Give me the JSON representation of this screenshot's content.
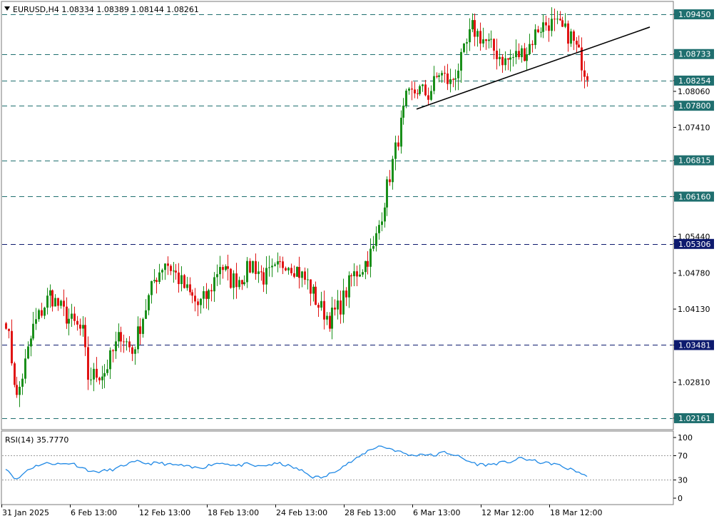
{
  "header": {
    "symbol_line": "EURUSD,H4  1.08334 1.08389 1.08144 1.08261"
  },
  "rsi_panel": {
    "label": "RSI(14) 35.7770",
    "levels": [
      "100",
      "70",
      "30",
      "0"
    ]
  },
  "colors": {
    "bull": "#1a8f1a",
    "bear": "#e01414",
    "teal_level": "#1f6f6f",
    "navy_level": "#0d1a6e",
    "rsi_line": "#1e88e5",
    "grid_dash": "#1f6f6f"
  },
  "chart_data": {
    "type": "candlestick",
    "symbol": "EURUSD",
    "timeframe": "H4",
    "last_bar_ohlc": {
      "open": 1.08334,
      "high": 1.08389,
      "low": 1.08144,
      "close": 1.08261
    },
    "price_axis_ticks": [
      "1.09450",
      "1.08733",
      "1.08254",
      "1.08060",
      "1.07800",
      "1.07410",
      "1.06815",
      "1.06160",
      "1.05440",
      "1.05306",
      "1.04780",
      "1.04130",
      "1.03481",
      "1.02810",
      "1.02161"
    ],
    "price_range": [
      1.0198,
      1.0967
    ],
    "horizontal_levels": [
      {
        "price": 1.0945,
        "label": "1.09450",
        "style": "teal"
      },
      {
        "price": 1.08733,
        "label": "1.08733",
        "style": "teal"
      },
      {
        "price": 1.08254,
        "label": "1.08254",
        "style": "teal"
      },
      {
        "price": 1.078,
        "label": "1.07800",
        "style": "teal"
      },
      {
        "price": 1.06815,
        "label": "1.06815",
        "style": "teal"
      },
      {
        "price": 1.0616,
        "label": "1.06160",
        "style": "teal"
      },
      {
        "price": 1.05306,
        "label": "1.05306",
        "style": "navy"
      },
      {
        "price": 1.03481,
        "label": "1.03481",
        "style": "navy"
      },
      {
        "price": 1.02161,
        "label": "1.02161",
        "style": "teal"
      }
    ],
    "trendline": {
      "start": {
        "date": "5 Mar 2025",
        "price": 1.0774
      },
      "end": {
        "date": "24 Mar 2025",
        "price": 1.0922
      }
    },
    "time_axis_labels": [
      "31 Jan 2025",
      "6 Feb 13:00",
      "12 Feb 13:00",
      "18 Feb 13:00",
      "24 Feb 13:00",
      "28 Feb 13:00",
      "6 Mar 13:00",
      "12 Mar 12:00",
      "18 Mar 12:00"
    ],
    "close_path": [
      [
        0,
        1.0395
      ],
      [
        4,
        1.025
      ],
      [
        10,
        1.038
      ],
      [
        16,
        1.044
      ],
      [
        22,
        1.04
      ],
      [
        28,
        1.037
      ],
      [
        30,
        1.029
      ],
      [
        36,
        1.03
      ],
      [
        42,
        1.037
      ],
      [
        46,
        1.0335
      ],
      [
        50,
        1.04
      ],
      [
        54,
        1.0465
      ],
      [
        58,
        1.05
      ],
      [
        62,
        1.0475
      ],
      [
        66,
        1.0445
      ],
      [
        70,
        1.042
      ],
      [
        74,
        1.044
      ],
      [
        78,
        1.0495
      ],
      [
        82,
        1.0465
      ],
      [
        86,
        1.047
      ],
      [
        90,
        1.0495
      ],
      [
        94,
        1.047
      ],
      [
        98,
        1.048
      ],
      [
        102,
        1.05
      ],
      [
        106,
        1.0485
      ],
      [
        110,
        1.046
      ],
      [
        114,
        1.042
      ],
      [
        118,
        1.0395
      ],
      [
        122,
        1.042
      ],
      [
        126,
        1.047
      ],
      [
        130,
        1.049
      ],
      [
        134,
        1.052
      ],
      [
        138,
        1.061
      ],
      [
        142,
        1.07
      ],
      [
        146,
        1.079
      ],
      [
        150,
        1.081
      ],
      [
        154,
        1.08
      ],
      [
        158,
        1.084
      ],
      [
        162,
        1.082
      ],
      [
        166,
        1.086
      ],
      [
        170,
        1.092
      ],
      [
        174,
        1.09
      ],
      [
        178,
        1.088
      ],
      [
        182,
        1.086
      ],
      [
        186,
        1.087
      ],
      [
        190,
        1.088
      ],
      [
        194,
        1.092
      ],
      [
        198,
        1.093
      ],
      [
        202,
        1.092
      ],
      [
        206,
        1.0905
      ],
      [
        210,
        1.086
      ],
      [
        212,
        1.083
      ]
    ],
    "candle_count": 213,
    "rsi": {
      "period": 14,
      "value": 35.777,
      "levels": [
        70,
        30
      ],
      "path": [
        [
          0,
          50
        ],
        [
          4,
          30
        ],
        [
          8,
          47
        ],
        [
          12,
          55
        ],
        [
          16,
          58
        ],
        [
          20,
          56
        ],
        [
          24,
          58
        ],
        [
          28,
          50
        ],
        [
          32,
          43
        ],
        [
          36,
          45
        ],
        [
          40,
          48
        ],
        [
          44,
          56
        ],
        [
          48,
          60
        ],
        [
          52,
          57
        ],
        [
          56,
          58
        ],
        [
          60,
          55
        ],
        [
          64,
          54
        ],
        [
          68,
          50
        ],
        [
          72,
          51
        ],
        [
          76,
          57
        ],
        [
          80,
          58
        ],
        [
          84,
          53
        ],
        [
          88,
          56
        ],
        [
          92,
          52
        ],
        [
          96,
          55
        ],
        [
          100,
          57
        ],
        [
          104,
          52
        ],
        [
          108,
          45
        ],
        [
          112,
          35
        ],
        [
          116,
          34
        ],
        [
          120,
          45
        ],
        [
          124,
          55
        ],
        [
          128,
          65
        ],
        [
          132,
          78
        ],
        [
          136,
          86
        ],
        [
          140,
          82
        ],
        [
          144,
          76
        ],
        [
          148,
          70
        ],
        [
          152,
          73
        ],
        [
          156,
          70
        ],
        [
          160,
          76
        ],
        [
          164,
          71
        ],
        [
          168,
          62
        ],
        [
          172,
          56
        ],
        [
          176,
          55
        ],
        [
          180,
          58
        ],
        [
          184,
          60
        ],
        [
          188,
          66
        ],
        [
          192,
          62
        ],
        [
          196,
          58
        ],
        [
          200,
          57
        ],
        [
          204,
          50
        ],
        [
          208,
          45
        ],
        [
          212,
          35.8
        ]
      ]
    }
  }
}
